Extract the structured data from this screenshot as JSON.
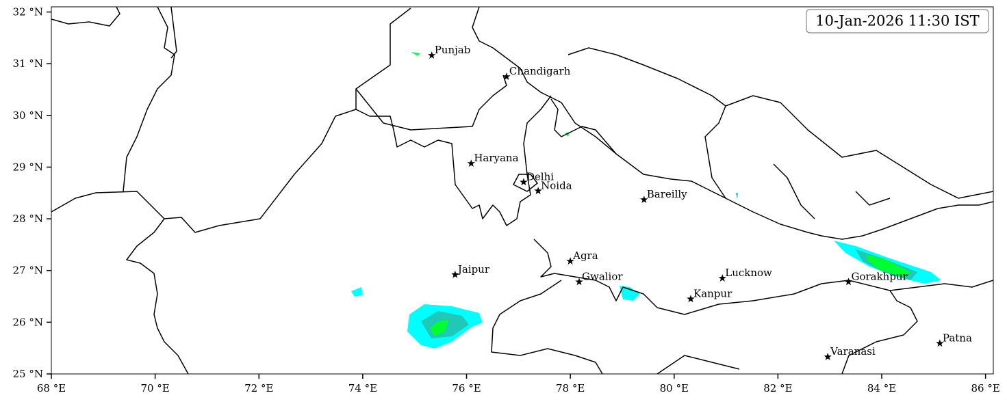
{
  "chart_data": {
    "type": "map",
    "title": "10-Jan-2026 11:30 IST",
    "xlim": [
      68,
      86.15
    ],
    "ylim": [
      25,
      32.1
    ],
    "xticks": [
      {
        "value": 68,
        "label": "68 °E"
      },
      {
        "value": 70,
        "label": "70 °E"
      },
      {
        "value": 72,
        "label": "72 °E"
      },
      {
        "value": 74,
        "label": "74 °E"
      },
      {
        "value": 76,
        "label": "76 °E"
      },
      {
        "value": 78,
        "label": "78 °E"
      },
      {
        "value": 80,
        "label": "80 °E"
      },
      {
        "value": 82,
        "label": "82 °E"
      },
      {
        "value": 84,
        "label": "84 °E"
      },
      {
        "value": 86,
        "label": "86 °E"
      }
    ],
    "yticks": [
      {
        "value": 25,
        "label": "25 °N"
      },
      {
        "value": 26,
        "label": "26 °N"
      },
      {
        "value": 27,
        "label": "27 °N"
      },
      {
        "value": 28,
        "label": "28 °N"
      },
      {
        "value": 29,
        "label": "29 °N"
      },
      {
        "value": 30,
        "label": "30 °N"
      },
      {
        "value": 31,
        "label": "31 °N"
      },
      {
        "value": 32,
        "label": "32 °N"
      }
    ],
    "cities": {
      "names": [
        "Punjab",
        "Chandigarh",
        "Haryana",
        "Delhi",
        "Noida",
        "Bareilly",
        "Agra",
        "Jaipur",
        "Gwalior",
        "Lucknow",
        "Kanpur",
        "Gorakhpur",
        "Varanasi",
        "Patna"
      ],
      "lon": [
        75.33,
        76.77,
        76.09,
        77.1,
        77.38,
        79.42,
        78.0,
        75.78,
        78.17,
        80.93,
        80.32,
        83.36,
        82.96,
        85.12
      ],
      "lat": [
        31.16,
        30.75,
        29.07,
        28.71,
        28.54,
        28.37,
        27.18,
        26.92,
        26.78,
        26.85,
        26.45,
        26.78,
        25.33,
        25.59
      ],
      "color": "#000000"
    }
  }
}
